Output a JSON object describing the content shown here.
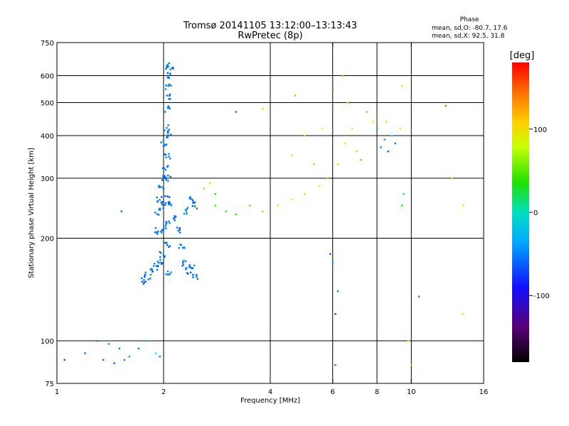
{
  "chart_data": {
    "type": "scatter",
    "title": "Tromsø 20141105 13:12:00–13:13:43",
    "subtitle": "RwPretec (8p)",
    "stats": {
      "label": "Phase",
      "line_o": "mean, sd,O: -80.7, 17.6",
      "line_x": "mean, sd,X:  92.5, 31.8"
    },
    "xlabel": "Frequency [MHz]",
    "ylabel": "Stationary phase Virtual Height [km]",
    "x_scale": "log",
    "y_scale": "log",
    "xlim": [
      1,
      16
    ],
    "ylim": [
      75,
      750
    ],
    "x_ticks": [
      1,
      2,
      4,
      6,
      8,
      10,
      16
    ],
    "x_tick_labels": [
      "1",
      "2",
      "4",
      "6",
      "8",
      "10",
      "16"
    ],
    "x_grid": [
      2,
      4,
      6,
      8,
      10
    ],
    "y_ticks": [
      75,
      100,
      200,
      300,
      400,
      500,
      600,
      750
    ],
    "y_tick_labels": [
      "75",
      "100",
      "200",
      "300",
      "400",
      "500",
      "600",
      "750"
    ],
    "y_grid": [
      100,
      200,
      300,
      400,
      500,
      600
    ],
    "grid": true,
    "colorbar": {
      "label": "[deg]",
      "range": [
        -180,
        180
      ],
      "ticks": [
        100,
        0,
        -100
      ],
      "tick_labels": [
        "100",
        "0",
        "-100"
      ],
      "colormap": "rainbow"
    },
    "series": [
      {
        "kind": "column",
        "points": [
          [
            2.06,
            640,
            -110
          ],
          [
            2.06,
            560,
            -110
          ],
          [
            2.05,
            480,
            -105
          ],
          [
            2.06,
            400,
            -110
          ],
          [
            2.05,
            350,
            -112
          ],
          [
            2.06,
            300,
            -110
          ],
          [
            2.05,
            260,
            -115
          ],
          [
            2.06,
            220,
            -110
          ],
          [
            2.05,
            190,
            -115
          ],
          [
            2.06,
            160,
            -112
          ],
          [
            2.0,
            380,
            -110
          ],
          [
            2.0,
            300,
            -112
          ],
          [
            2.0,
            250,
            -115
          ],
          [
            2.0,
            210,
            -110
          ],
          [
            1.98,
            180,
            -112
          ],
          [
            1.95,
            170,
            -115
          ],
          [
            1.9,
            165,
            -110
          ],
          [
            1.85,
            160,
            -112
          ],
          [
            1.8,
            155,
            -115
          ],
          [
            1.75,
            150,
            -110
          ],
          [
            2.1,
            250,
            -110
          ],
          [
            2.15,
            230,
            -112
          ],
          [
            2.2,
            210,
            -115
          ],
          [
            2.25,
            190,
            -110
          ],
          [
            2.3,
            170,
            -112
          ],
          [
            2.35,
            160,
            -115
          ],
          [
            2.4,
            165,
            -110
          ],
          [
            2.45,
            155,
            -112
          ],
          [
            2.3,
            240,
            -110
          ],
          [
            2.4,
            260,
            -112
          ],
          [
            2.45,
            250,
            -115
          ],
          [
            1.9,
            210,
            -110
          ],
          [
            1.92,
            240,
            -112
          ],
          [
            1.95,
            260,
            -115
          ],
          [
            1.97,
            280,
            -110
          ],
          [
            2.02,
            320,
            -110
          ],
          [
            2.04,
            420,
            -112
          ],
          [
            2.07,
            520,
            -115
          ],
          [
            2.08,
            600,
            -110
          ],
          [
            2.09,
            620,
            -112
          ]
        ]
      },
      {
        "kind": "scatter",
        "points": [
          [
            1.05,
            88,
            -120
          ],
          [
            1.2,
            92,
            -115
          ],
          [
            1.3,
            100,
            -110
          ],
          [
            1.4,
            98,
            -105
          ],
          [
            1.5,
            95,
            -112
          ],
          [
            1.55,
            88,
            -108
          ],
          [
            1.6,
            90,
            -100
          ],
          [
            1.7,
            95,
            -110
          ],
          [
            1.8,
            100,
            -90
          ],
          [
            1.35,
            88,
            -115
          ],
          [
            1.45,
            86,
            -120
          ],
          [
            1.9,
            92,
            -70
          ],
          [
            1.95,
            90,
            -110
          ],
          [
            1.52,
            240,
            -115
          ],
          [
            2.8,
            250,
            30
          ],
          [
            3.0,
            240,
            20
          ],
          [
            3.2,
            235,
            10
          ],
          [
            3.5,
            250,
            40
          ],
          [
            3.8,
            240,
            60
          ],
          [
            4.2,
            250,
            80
          ],
          [
            4.6,
            260,
            100
          ],
          [
            5.0,
            270,
            110
          ],
          [
            5.5,
            285,
            90
          ],
          [
            5.8,
            300,
            60
          ],
          [
            6.2,
            330,
            80
          ],
          [
            6.5,
            380,
            100
          ],
          [
            6.8,
            420,
            90
          ],
          [
            7.0,
            360,
            70
          ],
          [
            7.2,
            340,
            40
          ],
          [
            6.0,
            550,
            140
          ],
          [
            6.4,
            600,
            120
          ],
          [
            6.6,
            500,
            110
          ],
          [
            5.6,
            420,
            100
          ],
          [
            5.0,
            400,
            90
          ],
          [
            4.6,
            350,
            80
          ],
          [
            5.3,
            330,
            60
          ],
          [
            8.2,
            370,
            -110
          ],
          [
            8.4,
            390,
            -100
          ],
          [
            8.6,
            360,
            -120
          ],
          [
            8.0,
            420,
            -90
          ],
          [
            8.8,
            400,
            -70
          ],
          [
            9.0,
            380,
            -110
          ],
          [
            9.3,
            420,
            90
          ],
          [
            9.4,
            560,
            100
          ],
          [
            7.8,
            440,
            100
          ],
          [
            7.5,
            470,
            120
          ],
          [
            8.5,
            440,
            80
          ],
          [
            5.9,
            180,
            -120
          ],
          [
            6.0,
            170,
            -100
          ],
          [
            6.2,
            140,
            -110
          ],
          [
            6.1,
            120,
            -130
          ],
          [
            6.1,
            85,
            -110
          ],
          [
            9.5,
            270,
            -10
          ],
          [
            9.4,
            250,
            10
          ],
          [
            9.8,
            100,
            100
          ],
          [
            10.0,
            85,
            120
          ],
          [
            10.5,
            135,
            -110
          ],
          [
            12.5,
            490,
            150
          ],
          [
            13.0,
            300,
            90
          ],
          [
            14.0,
            250,
            90
          ],
          [
            14.0,
            120,
            100
          ],
          [
            4.7,
            525,
            120
          ],
          [
            3.8,
            480,
            110
          ],
          [
            3.2,
            470,
            -110
          ],
          [
            2.7,
            290,
            110
          ],
          [
            2.6,
            280,
            60
          ],
          [
            2.8,
            270,
            20
          ]
        ]
      }
    ]
  }
}
